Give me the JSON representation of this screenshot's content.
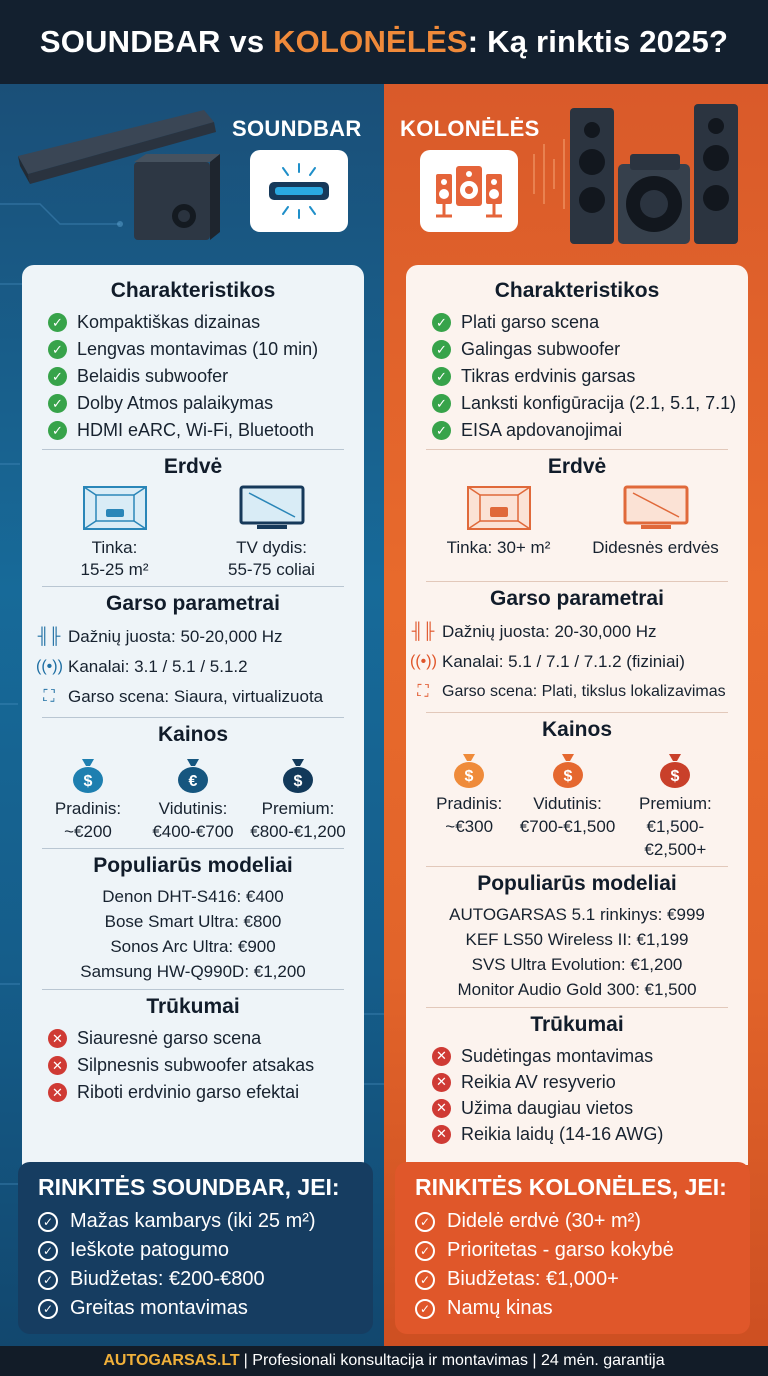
{
  "header": {
    "title_part1": "SOUNDBAR",
    "title_vs": " vs ",
    "title_part2": "KOLONĖLĖS",
    "title_part3": ": Ką rinktis 2025?"
  },
  "colors": {
    "left_accent": "#176a99",
    "right_accent": "#e86a2c",
    "check_green": "#37a34a",
    "cross_red": "#cf3a34",
    "brand_yellow": "#f0b03a"
  },
  "left": {
    "title": "SOUNDBAR",
    "features_title": "Charakteristikos",
    "features": [
      "Kompaktiškas dizainas",
      "Lengvas montavimas (10 min)",
      "Belaidis subwoofer",
      "Dolby Atmos palaikymas",
      "HDMI eARC, Wi-Fi, Bluetooth"
    ],
    "space_title": "Erdvė",
    "space": [
      {
        "line1": "Tinka:",
        "line2": "15-25 m²",
        "icon": "room-icon"
      },
      {
        "line1": "TV dydis:",
        "line2": "55-75 coliai",
        "icon": "tv-icon"
      }
    ],
    "params_title": "Garso parametrai",
    "params": [
      {
        "icon": "waveform-icon",
        "text": "Dažnių juosta: 50-20,000 Hz"
      },
      {
        "icon": "channels-icon",
        "text": "Kanalai: 3.1 / 5.1 / 5.1.2"
      },
      {
        "icon": "soundstage-icon",
        "text": "Garso scena: Siaura, virtualizuota"
      }
    ],
    "prices_title": "Kainos",
    "prices": [
      {
        "symbol": "$",
        "label": "Pradinis:",
        "value": "~€200"
      },
      {
        "symbol": "€",
        "label": "Vidutinis:",
        "value": "€400-€700"
      },
      {
        "symbol": "$",
        "label": "Premium:",
        "value": "€800-€1,200"
      }
    ],
    "models_title": "Populiarūs modeliai",
    "models": [
      "Denon DHT-S416: €400",
      "Bose Smart Ultra: €800",
      "Sonos Arc Ultra: €900",
      "Samsung HW-Q990D: €1,200"
    ],
    "cons_title": "Trūkumai",
    "cons": [
      "Siauresnė garso scena",
      "Silpnesnis subwoofer atsakas",
      "Riboti erdvinio garso efektai"
    ],
    "choose_title": "RINKITĖS SOUNDBAR, JEI:",
    "choose": [
      "Mažas kambarys (iki 25 m²)",
      "Ieškote patogumo",
      "Biudžetas: €200-€800",
      "Greitas montavimas"
    ]
  },
  "right": {
    "title": "KOLONĖLĖS",
    "features_title": "Charakteristikos",
    "features": [
      "Plati garso scena",
      "Galingas subwoofer",
      "Tikras erdvinis garsas",
      "Lanksti konfigūracija (2.1, 5.1, 7.1)",
      "EISA apdovanojimai"
    ],
    "space_title": "Erdvė",
    "space": [
      {
        "line1": "Tinka: 30+ m²",
        "line2": "",
        "icon": "home-theater-room-icon"
      },
      {
        "line1": "Didesnės erdvės",
        "line2": "",
        "icon": "large-screen-icon"
      }
    ],
    "params_title": "Garso parametrai",
    "params": [
      {
        "icon": "waveform-icon",
        "text": "Dažnių juosta: 20-30,000 Hz"
      },
      {
        "icon": "channels-icon",
        "text": "Kanalai: 5.1 / 7.1 / 7.1.2 (fiziniai)"
      },
      {
        "icon": "soundstage-icon",
        "text": "Garso scena: Plati, tikslus lokalizavimas"
      }
    ],
    "prices_title": "Kainos",
    "prices": [
      {
        "symbol": "$",
        "label": "Pradinis:",
        "value": "~€300"
      },
      {
        "symbol": "$",
        "label": "Vidutinis:",
        "value": "€700-€1,500"
      },
      {
        "symbol": "$",
        "label": "Premium:",
        "value": "€1,500-€2,500+"
      }
    ],
    "models_title": "Populiarūs modeliai",
    "models": [
      "AUTOGARSAS 5.1 rinkinys: €999",
      "KEF LS50 Wireless II: €1,199",
      "SVS Ultra Evolution: €1,200",
      "Monitor Audio Gold 300: €1,500"
    ],
    "cons_title": "Trūkumai",
    "cons": [
      "Sudėtingas montavimas",
      "Reikia AV resyverio",
      "Užima daugiau vietos",
      "Reikia laidų (14-16 AWG)"
    ],
    "choose_title": "RINKITĖS KOLONĖLES, JEI:",
    "choose": [
      "Didelė erdvė (30+ m²)",
      "Prioritetas - garso kokybė",
      "Biudžetas: €1,000+",
      "Namų kinas"
    ]
  },
  "footer": {
    "brand": "AUTOGARSAS.LT",
    "text": "| Profesionali konsultacija ir montavimas | 24 mėn. garantija"
  }
}
